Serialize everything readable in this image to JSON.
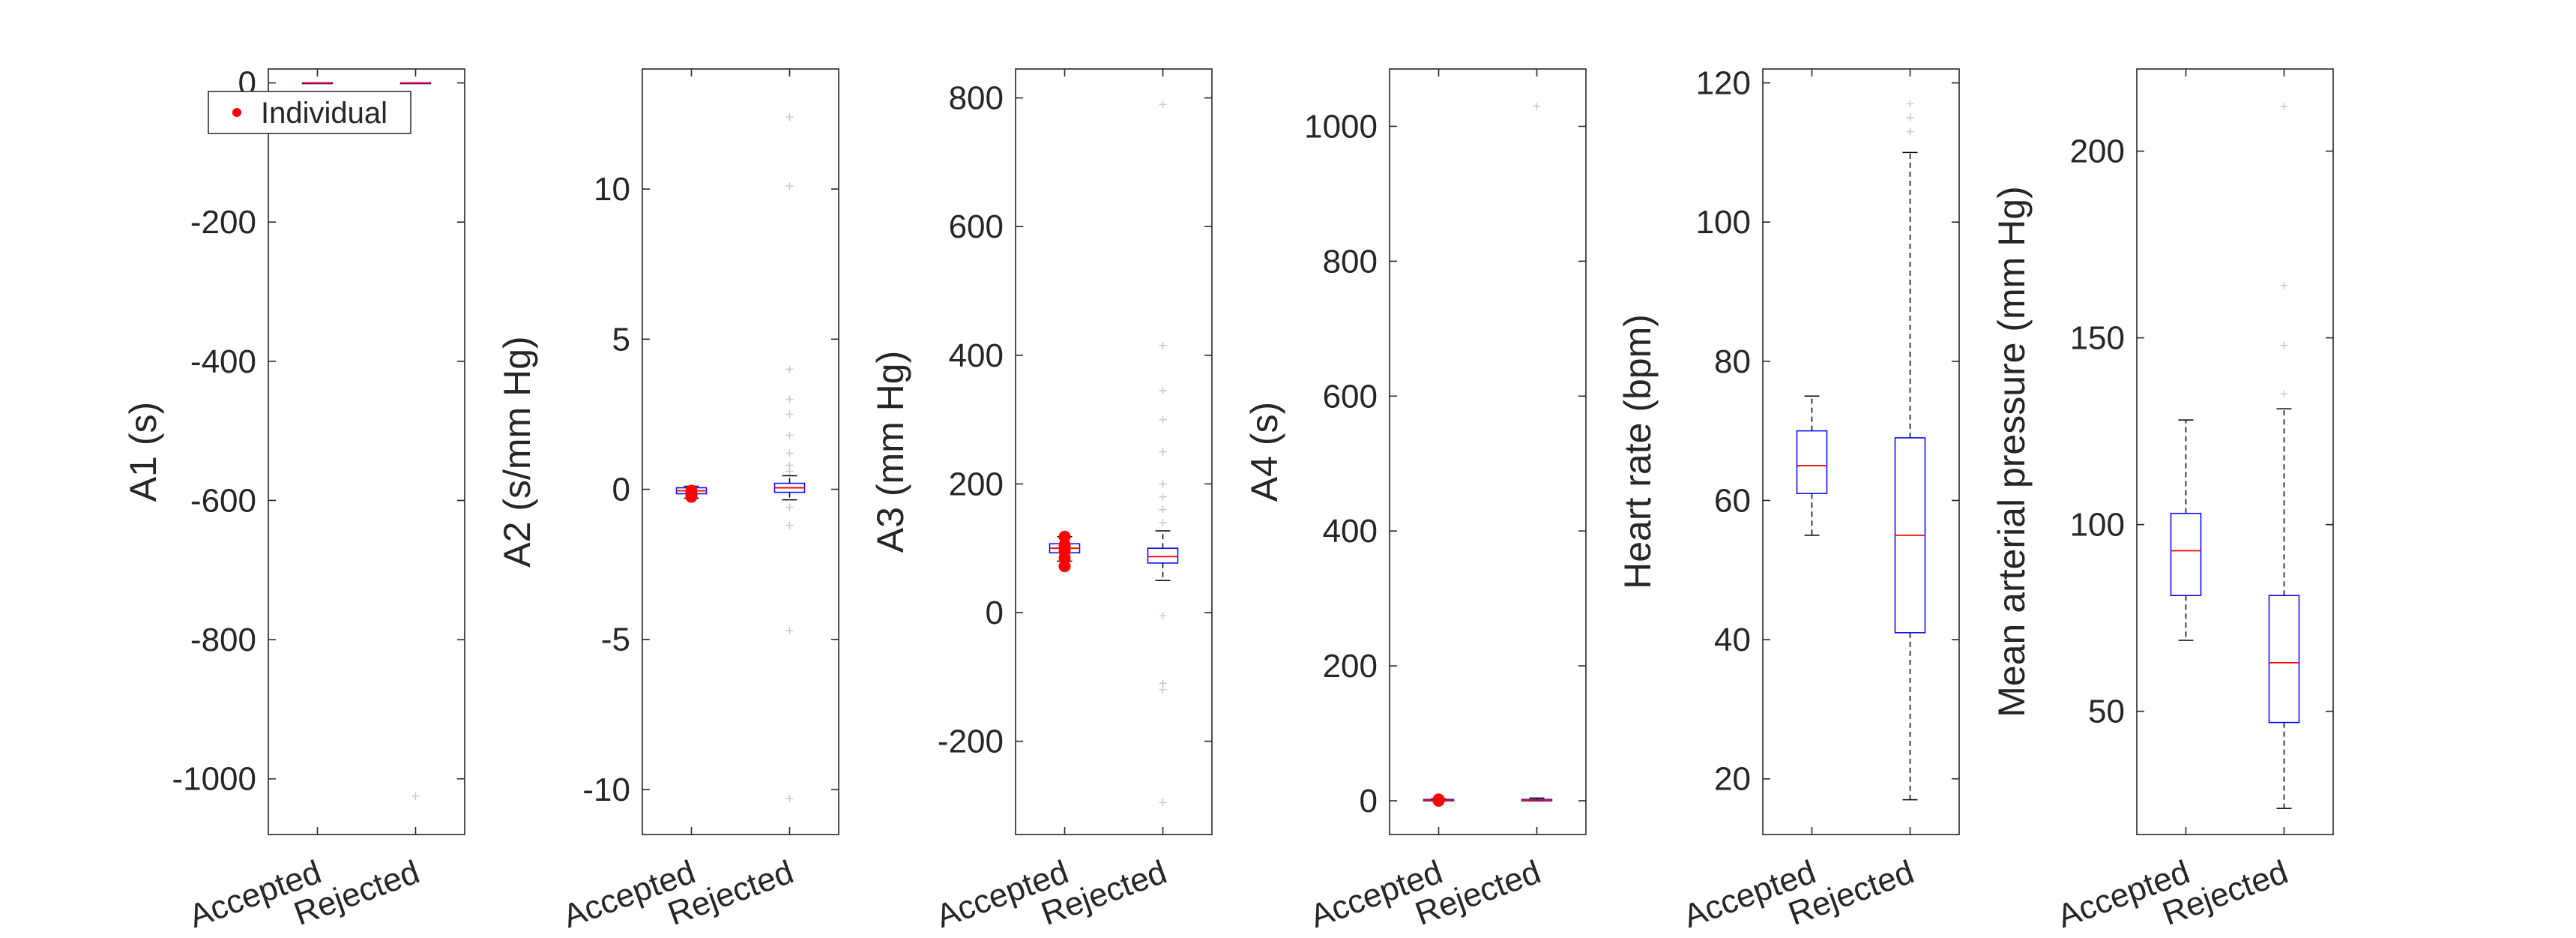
{
  "chart_data": [
    {
      "type": "box",
      "ylabel": "A1 (s)",
      "categories": [
        "Accepted",
        "Rejected"
      ],
      "ylim": [
        -1080,
        20
      ],
      "yticks": [
        0,
        -200,
        -400,
        -600,
        -800,
        -1000
      ],
      "ytick_labels": [
        "0",
        "-200",
        "-400",
        "-600",
        "-800",
        "-1000"
      ],
      "boxes": [
        {
          "category": "Accepted",
          "q1": 0,
          "median": 0,
          "q3": 0,
          "whisker_low": 0,
          "whisker_high": 0,
          "outliers": []
        },
        {
          "category": "Rejected",
          "q1": 0,
          "median": 0,
          "q3": 0,
          "whisker_low": 0,
          "whisker_high": 0,
          "outliers": [
            -1025
          ]
        }
      ],
      "individual": [],
      "legend": {
        "entries": [
          "Individual"
        ],
        "location": "top-right"
      }
    },
    {
      "type": "box",
      "ylabel": "A2 (s/mm Hg)",
      "categories": [
        "Accepted",
        "Rejected"
      ],
      "ylim": [
        -11.5,
        14
      ],
      "yticks": [
        10,
        5,
        0,
        -5,
        -10
      ],
      "ytick_labels": [
        "10",
        "5",
        "0",
        "-5",
        "-10"
      ],
      "boxes": [
        {
          "category": "Accepted",
          "q1": -0.15,
          "median": -0.05,
          "q3": 0.05,
          "whisker_low": -0.3,
          "whisker_high": 0.1,
          "outliers": []
        },
        {
          "category": "Rejected",
          "q1": -0.1,
          "median": 0.05,
          "q3": 0.2,
          "whisker_low": -0.35,
          "whisker_high": 0.45,
          "outliers": [
            12.4,
            10.1,
            4.0,
            3.0,
            2.5,
            1.8,
            1.2,
            0.8,
            0.6,
            -0.6,
            -1.2,
            -4.7,
            -10.3
          ]
        }
      ],
      "individual": [
        -0.1,
        -0.15,
        -0.2,
        -0.05,
        -0.25
      ]
    },
    {
      "type": "box",
      "ylabel": "A3 (mm Hg)",
      "categories": [
        "Accepted",
        "Rejected"
      ],
      "ylim": [
        -345,
        845
      ],
      "yticks": [
        800,
        600,
        400,
        200,
        0,
        -200
      ],
      "ytick_labels": [
        "800",
        "600",
        "400",
        "200",
        "0",
        "-200"
      ],
      "boxes": [
        {
          "category": "Accepted",
          "q1": 93,
          "median": 100,
          "q3": 107,
          "whisker_low": 80,
          "whisker_high": 118,
          "outliers": []
        },
        {
          "category": "Rejected",
          "q1": 77,
          "median": 87,
          "q3": 100,
          "whisker_low": 50,
          "whisker_high": 127,
          "outliers": [
            790,
            415,
            345,
            300,
            250,
            200,
            180,
            160,
            140,
            -5,
            -110,
            -120,
            -295
          ]
        }
      ],
      "individual": [
        118,
        105,
        100,
        95,
        85,
        72
      ]
    },
    {
      "type": "box",
      "ylabel": "A4 (s)",
      "categories": [
        "Accepted",
        "Rejected"
      ],
      "ylim": [
        -50,
        1085
      ],
      "yticks": [
        1000,
        800,
        600,
        400,
        200,
        0
      ],
      "ytick_labels": [
        "1000",
        "800",
        "600",
        "400",
        "200",
        "0"
      ],
      "boxes": [
        {
          "category": "Accepted",
          "q1": 0,
          "median": 1,
          "q3": 2,
          "whisker_low": 0,
          "whisker_high": 3,
          "outliers": []
        },
        {
          "category": "Rejected",
          "q1": 0,
          "median": 1,
          "q3": 2,
          "whisker_low": 0,
          "whisker_high": 4,
          "outliers": [
            1030
          ]
        }
      ],
      "individual": [
        1,
        2,
        0
      ]
    },
    {
      "type": "box",
      "ylabel": "Heart rate (bpm)",
      "categories": [
        "Accepted",
        "Rejected"
      ],
      "ylim": [
        12,
        122
      ],
      "yticks": [
        120,
        100,
        80,
        60,
        40,
        20
      ],
      "ytick_labels": [
        "120",
        "100",
        "80",
        "60",
        "40",
        "20"
      ],
      "boxes": [
        {
          "category": "Accepted",
          "q1": 61,
          "median": 65,
          "q3": 70,
          "whisker_low": 55,
          "whisker_high": 75,
          "outliers": []
        },
        {
          "category": "Rejected",
          "q1": 41,
          "median": 55,
          "q3": 69,
          "whisker_low": 17,
          "whisker_high": 110,
          "outliers": [
            117,
            115,
            113
          ]
        }
      ],
      "individual": []
    },
    {
      "type": "box",
      "ylabel": "Mean arterial pressure (mm Hg)",
      "categories": [
        "Accepted",
        "Rejected"
      ],
      "ylim": [
        17,
        222
      ],
      "yticks": [
        200,
        150,
        100,
        50
      ],
      "ytick_labels": [
        "200",
        "150",
        "100",
        "50"
      ],
      "boxes": [
        {
          "category": "Accepted",
          "q1": 81,
          "median": 93,
          "q3": 103,
          "whisker_low": 69,
          "whisker_high": 128,
          "outliers": []
        },
        {
          "category": "Rejected",
          "q1": 47,
          "median": 63,
          "q3": 81,
          "whisker_low": 24,
          "whisker_high": 131,
          "outliers": [
            212,
            164,
            148,
            135
          ]
        }
      ],
      "individual": []
    }
  ],
  "style": {
    "box_color": "#0000ff",
    "median_color": "#ff0000",
    "whisker_color": "#000000",
    "outlier_color": "#c8c8c8",
    "individual_color": "#ff0000",
    "axes_color": "#262626"
  }
}
